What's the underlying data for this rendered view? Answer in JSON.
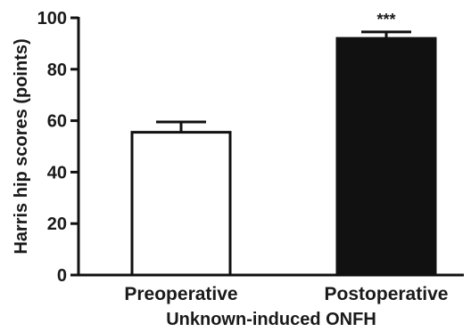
{
  "chart_data": {
    "type": "bar",
    "title": "",
    "xlabel": "Unknown-induced ONFH",
    "ylabel": "Harris hip scores (points)",
    "ylim": [
      0,
      100
    ],
    "yticks": [
      0,
      20,
      40,
      60,
      80,
      100
    ],
    "categories": [
      "Preoperative",
      "Postoperative"
    ],
    "values": [
      55.5,
      92
    ],
    "errors": [
      4,
      2.5
    ],
    "bar_colors": [
      "#ffffff",
      "#111111"
    ],
    "bar_edge_color": "#111111",
    "annotations": [
      {
        "category": "Postoperative",
        "text": "***"
      }
    ],
    "grid": false,
    "legend": "none"
  }
}
